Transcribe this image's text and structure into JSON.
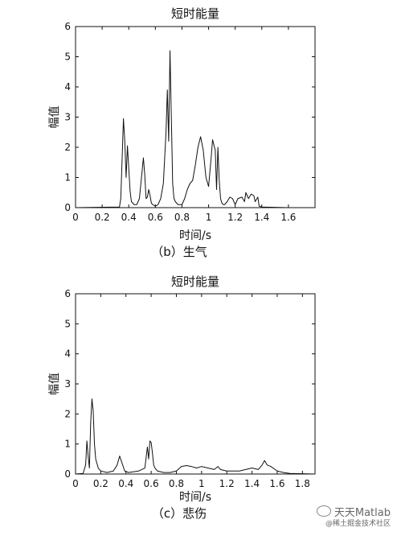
{
  "chart_data": [
    {
      "type": "line",
      "title": "短时能量",
      "xlabel": "时间/s",
      "ylabel": "幅值",
      "caption": "（b）生气",
      "xlim": [
        0,
        1.8
      ],
      "ylim": [
        0,
        6
      ],
      "xticks": [
        0,
        0.2,
        0.4,
        0.6,
        0.8,
        1,
        1.2,
        1.4,
        1.6
      ],
      "xtick_labels": [
        "0",
        "0.2",
        "0.4",
        "0.6",
        "0.8",
        "1",
        "1.2",
        "1.4",
        "1.6"
      ],
      "yticks": [
        0,
        1,
        2,
        3,
        4,
        5,
        6
      ],
      "ytick_labels": [
        "0",
        "1",
        "2",
        "3",
        "4",
        "5",
        "6"
      ],
      "grid": false,
      "series": [
        {
          "x": [
            0.0,
            0.33,
            0.34,
            0.35,
            0.36,
            0.37,
            0.38,
            0.39,
            0.4,
            0.41,
            0.42,
            0.44,
            0.46,
            0.48,
            0.5,
            0.51,
            0.52,
            0.53,
            0.54,
            0.55,
            0.56,
            0.57,
            0.58,
            0.6,
            0.62,
            0.64,
            0.66,
            0.68,
            0.69,
            0.7,
            0.71,
            0.72,
            0.73,
            0.74,
            0.75,
            0.77,
            0.8,
            0.82,
            0.84,
            0.86,
            0.88,
            0.9,
            0.92,
            0.94,
            0.96,
            0.98,
            1.0,
            1.02,
            1.03,
            1.05,
            1.06,
            1.07,
            1.08,
            1.09,
            1.1,
            1.11,
            1.12,
            1.14,
            1.16,
            1.18,
            1.2,
            1.22,
            1.25,
            1.27,
            1.28,
            1.3,
            1.32,
            1.34,
            1.35,
            1.37,
            1.38,
            1.4,
            1.6,
            1.8
          ],
          "y": [
            0.0,
            0.02,
            0.3,
            1.6,
            2.95,
            2.2,
            1.0,
            2.05,
            1.3,
            0.55,
            0.2,
            0.1,
            0.1,
            0.3,
            1.2,
            1.65,
            1.1,
            0.3,
            0.35,
            0.6,
            0.4,
            0.15,
            0.1,
            0.05,
            0.1,
            0.3,
            0.8,
            2.5,
            3.9,
            2.2,
            5.2,
            3.0,
            0.8,
            0.3,
            0.2,
            0.1,
            0.1,
            0.3,
            0.6,
            0.8,
            0.9,
            1.4,
            2.0,
            2.35,
            1.9,
            1.0,
            0.7,
            1.7,
            2.25,
            1.9,
            0.6,
            2.0,
            0.9,
            0.3,
            0.15,
            0.1,
            0.1,
            0.2,
            0.35,
            0.3,
            0.1,
            0.3,
            0.35,
            0.2,
            0.5,
            0.3,
            0.45,
            0.4,
            0.2,
            0.35,
            0.05,
            0.02,
            0.0,
            0.0
          ]
        }
      ]
    },
    {
      "type": "line",
      "title": "短时能量",
      "xlabel": "时间/s",
      "ylabel": "幅值",
      "caption": "（c）悲伤",
      "xlim": [
        0,
        1.9
      ],
      "ylim": [
        0,
        6
      ],
      "xticks": [
        0,
        0.2,
        0.4,
        0.6,
        0.8,
        1,
        1.2,
        1.4,
        1.6,
        1.8
      ],
      "xtick_labels": [
        "0",
        "0.2",
        "0.4",
        "0.6",
        "0.8",
        "1",
        "1.2",
        "1.4",
        "1.6",
        "1.8"
      ],
      "yticks": [
        0,
        1,
        2,
        3,
        4,
        5,
        6
      ],
      "ytick_labels": [
        "0",
        "1",
        "2",
        "3",
        "4",
        "5",
        "6"
      ],
      "grid": false,
      "series": [
        {
          "x": [
            0.0,
            0.06,
            0.08,
            0.09,
            0.1,
            0.11,
            0.12,
            0.13,
            0.14,
            0.15,
            0.16,
            0.18,
            0.2,
            0.25,
            0.3,
            0.33,
            0.35,
            0.37,
            0.39,
            0.42,
            0.5,
            0.55,
            0.57,
            0.58,
            0.59,
            0.6,
            0.61,
            0.62,
            0.63,
            0.65,
            0.7,
            0.75,
            0.8,
            0.84,
            0.88,
            0.92,
            0.96,
            1.0,
            1.05,
            1.1,
            1.13,
            1.15,
            1.2,
            1.3,
            1.4,
            1.45,
            1.48,
            1.5,
            1.52,
            1.55,
            1.6,
            1.65,
            1.7,
            1.9
          ],
          "y": [
            0.0,
            0.02,
            0.3,
            1.1,
            0.6,
            0.2,
            1.7,
            2.5,
            2.1,
            1.0,
            0.5,
            0.2,
            0.1,
            0.05,
            0.1,
            0.3,
            0.6,
            0.35,
            0.1,
            0.05,
            0.1,
            0.2,
            0.9,
            0.5,
            1.1,
            1.05,
            0.7,
            0.3,
            0.2,
            0.1,
            0.05,
            0.05,
            0.1,
            0.25,
            0.28,
            0.25,
            0.2,
            0.25,
            0.2,
            0.15,
            0.25,
            0.15,
            0.1,
            0.1,
            0.2,
            0.15,
            0.3,
            0.45,
            0.3,
            0.25,
            0.1,
            0.05,
            0.02,
            0.0
          ]
        }
      ]
    }
  ],
  "watermark": {
    "line1": "天天Matlab",
    "line2": "@稀土掘金技术社区"
  }
}
